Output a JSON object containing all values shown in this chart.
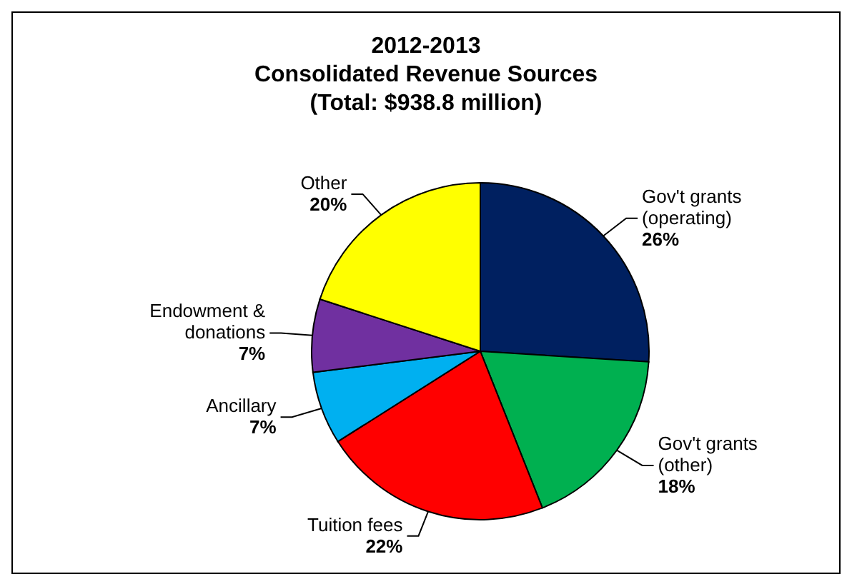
{
  "chart_data": {
    "type": "pie",
    "title": "2012-2013\nConsolidated Revenue Sources\n(Total: $938.8 million)",
    "categories": [
      "Gov't grants (operating)",
      "Gov't grants (other)",
      "Tuition fees",
      "Ancillary",
      "Endowment & donations",
      "Other"
    ],
    "values": [
      26,
      18,
      22,
      7,
      7,
      20
    ],
    "value_labels": [
      "26%",
      "18%",
      "22%",
      "7%",
      "7%",
      "20%"
    ],
    "colors": [
      "#002060",
      "#00b050",
      "#ff0000",
      "#00b0f0",
      "#7030a0",
      "#ffff00"
    ]
  }
}
